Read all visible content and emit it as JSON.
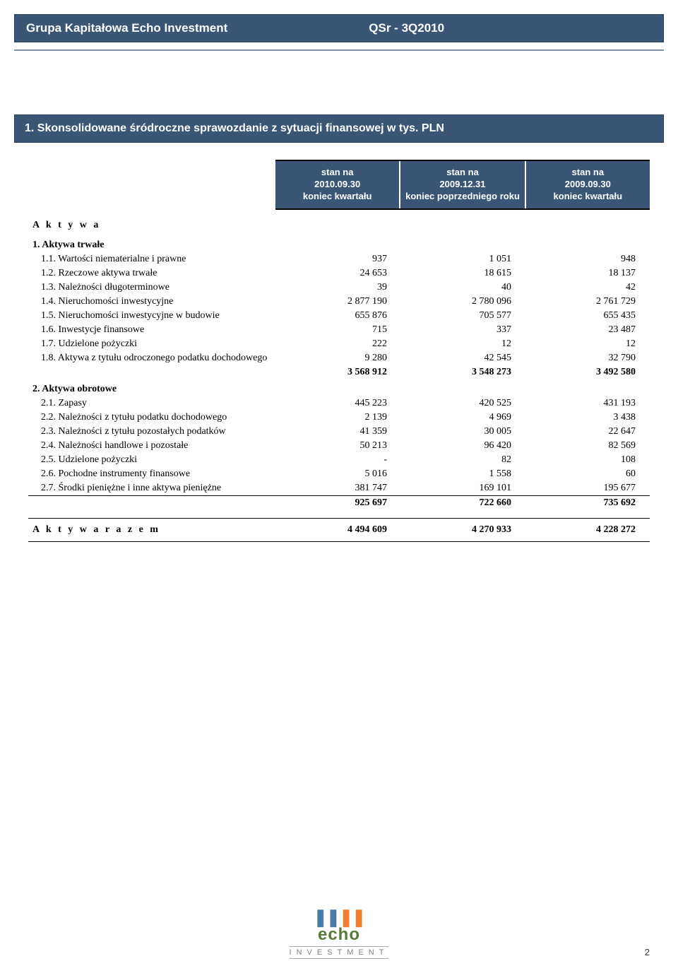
{
  "header": {
    "company": "Grupa Kapitałowa Echo Investment",
    "report_ref": "QSr -  3Q2010",
    "bar_bg": "#3a5576",
    "text_color": "#ffffff"
  },
  "section_title": "1.  Skonsolidowane śródroczne sprawozdanie z sytuacji finansowej w tys. PLN",
  "columns": [
    {
      "line1": "stan na",
      "line2": "2010.09.30",
      "line3": "koniec kwartału"
    },
    {
      "line1": "stan na",
      "line2": "2009.12.31",
      "line3": "koniec poprzedniego roku"
    },
    {
      "line1": "stan na",
      "line2": "2009.09.30",
      "line3": "koniec kwartału"
    }
  ],
  "assets_heading": "A k t y w a",
  "group1_heading": "1. Aktywa trwałe",
  "group2_heading": "2. Aktywa obrotowe",
  "rows_g1": [
    {
      "label": "1.1. Wartości niematerialne i prawne",
      "v": [
        "937",
        "1 051",
        "948"
      ]
    },
    {
      "label": "1.2. Rzeczowe aktywa trwałe",
      "v": [
        "24 653",
        "18 615",
        "18 137"
      ]
    },
    {
      "label": "1.3. Należności długoterminowe",
      "v": [
        "39",
        "40",
        "42"
      ]
    },
    {
      "label": "1.4. Nieruchomości inwestycyjne",
      "v": [
        "2 877 190",
        "2 780 096",
        "2 761 729"
      ]
    },
    {
      "label": "1.5. Nieruchomości inwestycyjne w budowie",
      "v": [
        "655 876",
        "705 577",
        "655 435"
      ]
    },
    {
      "label": "1.6. Inwestycje finansowe",
      "v": [
        "715",
        "337",
        "23 487"
      ]
    },
    {
      "label": "1.7. Udzielone pożyczki",
      "v": [
        "222",
        "12",
        "12"
      ]
    },
    {
      "label": "1.8. Aktywa z tytułu odroczonego podatku dochodowego",
      "v": [
        "9 280",
        "42 545",
        "32 790"
      ]
    }
  ],
  "subtotal_g1": [
    "3 568 912",
    "3 548 273",
    "3 492 580"
  ],
  "rows_g2": [
    {
      "label": "2.1. Zapasy",
      "v": [
        "445 223",
        "420 525",
        "431 193"
      ]
    },
    {
      "label": "2.2. Należności z tytułu podatku dochodowego",
      "v": [
        "2 139",
        "4 969",
        "3 438"
      ]
    },
    {
      "label": "2.3. Należności z tytułu pozostałych podatków",
      "v": [
        "41 359",
        "30 005",
        "22 647"
      ]
    },
    {
      "label": "2.4. Należności handlowe i pozostałe",
      "v": [
        "50 213",
        "96 420",
        "82 569"
      ]
    },
    {
      "label": "2.5. Udzielone pożyczki",
      "v": [
        "-",
        "82",
        "108"
      ]
    },
    {
      "label": "2.6. Pochodne instrumenty finansowe",
      "v": [
        "5 016",
        "1 558",
        "60"
      ]
    },
    {
      "label": "2.7. Środki pieniężne i inne aktywa pieniężne",
      "v": [
        "381 747",
        "169 101",
        "195 677"
      ]
    }
  ],
  "subtotal_g2": [
    "925 697",
    "722 660",
    "735 692"
  ],
  "grand_label": "A k t y w a   r a z e m",
  "grand_total": [
    "4 494 609",
    "4 270 933",
    "4 228 272"
  ],
  "footer": {
    "logo_text": "echo",
    "logo_sub": "INVESTMENT",
    "page_number": "2"
  },
  "style": {
    "header_bg": "#3a5576",
    "header_border": "#2b3e57",
    "body_serif": "Palatino Linotype",
    "font_size_body": 14,
    "font_size_header": 13
  }
}
